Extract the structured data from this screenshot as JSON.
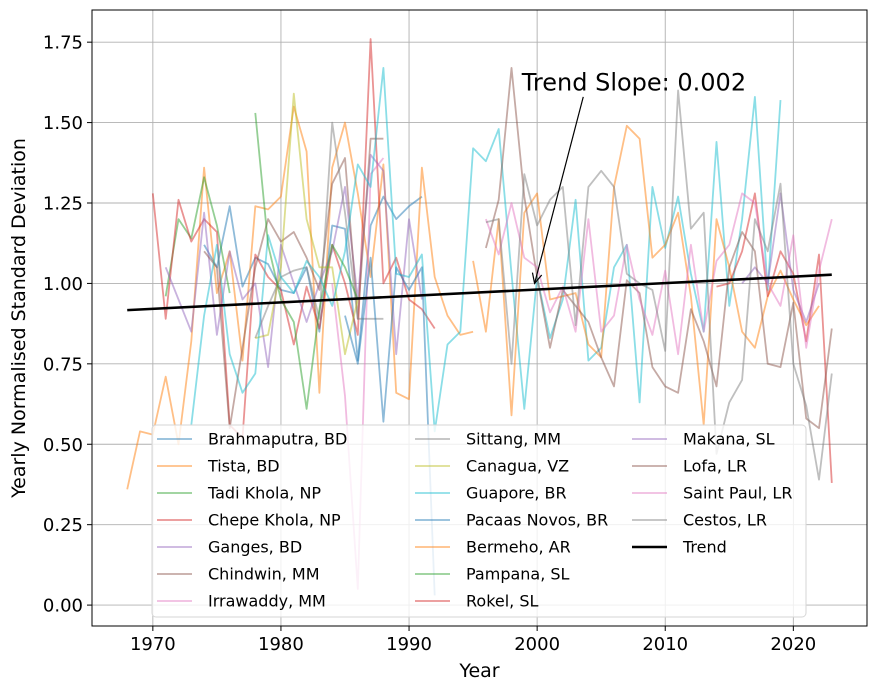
{
  "chart_data": {
    "type": "line",
    "xlabel": "Year",
    "ylabel": "Yearly Normalised Standard Deviation",
    "xlim": [
      1965.25,
      2025.75
    ],
    "ylim": [
      -0.065,
      1.85
    ],
    "grid": true,
    "legend_placement": "lower center",
    "x_ticks": [
      1970,
      1980,
      1990,
      2000,
      2010,
      2020
    ],
    "y_ticks": [
      0.0,
      0.25,
      0.5,
      0.75,
      1.0,
      1.25,
      1.5,
      1.75
    ],
    "x_tick_labels": [
      "1970",
      "1980",
      "1990",
      "2000",
      "2010",
      "2020"
    ],
    "y_tick_labels": [
      "0.00",
      "0.25",
      "0.50",
      "0.75",
      "1.00",
      "1.25",
      "1.50",
      "1.75"
    ],
    "annotation": {
      "text": "Trend Slope: 0.002",
      "text_x": 1998.8,
      "text_y": 1.6,
      "arrow_from_x": 2003.6,
      "arrow_from_y": 1.58,
      "arrow_to_x": 1999.8,
      "arrow_to_y": 1.0
    },
    "trend": {
      "name": "Trend",
      "color": "#000000",
      "x": [
        1968,
        2023
      ],
      "y": [
        0.917,
        1.027
      ]
    },
    "series": [
      {
        "name": "Brahmaputra, BD",
        "color": "#1f77b4",
        "x": [
          1974,
          1975,
          1976,
          1977,
          1978,
          1979,
          1980,
          1981,
          1982,
          1983,
          1984,
          1985,
          1986,
          1987,
          1988,
          1989,
          1990,
          1991
        ],
        "y": [
          1.12,
          1.05,
          1.24,
          0.99,
          1.08,
          1.06,
          0.98,
          0.97,
          1.05,
          0.85,
          1.18,
          1.17,
          0.76,
          1.18,
          1.27,
          1.2,
          1.24,
          1.27
        ]
      },
      {
        "name": "Tista, BD",
        "color": "#ff7f0e",
        "x": [
          1968,
          1969,
          1970,
          1971,
          1972,
          1973,
          1974,
          1975,
          1976,
          1977,
          1978,
          1979,
          1980,
          1981,
          1982,
          1983,
          1984,
          1985,
          1986,
          1987,
          1988,
          1989,
          1990,
          1991,
          1992,
          1993,
          1994,
          1995
        ],
        "y": [
          0.36,
          0.54,
          0.53,
          0.71,
          0.5,
          0.82,
          1.36,
          0.97,
          1.1,
          0.76,
          1.24,
          1.23,
          1.27,
          1.55,
          1.41,
          0.66,
          1.36,
          1.5,
          1.28,
          1.02,
          1.37,
          0.66,
          0.64,
          1.36,
          1.02,
          0.9,
          0.84,
          0.85
        ]
      },
      {
        "name": "Tadi Khola, NP",
        "color": "#2ca02c",
        "x": [
          1971,
          1972,
          1973,
          1974,
          1975,
          1976
        ],
        "y": [
          0.96,
          1.2,
          1.14,
          1.33,
          1.18,
          0.97
        ]
      },
      {
        "name": "Chepe Khola, NP",
        "color": "#d62728",
        "x": [
          1970,
          1971,
          1972,
          1973,
          1974,
          1975,
          1976,
          1977,
          1978,
          1979,
          1980,
          1981,
          1982,
          1983,
          1984,
          1985,
          1986,
          1987,
          1988,
          1989,
          1990,
          1991,
          1992
        ],
        "y": [
          1.28,
          0.89,
          1.26,
          1.13,
          1.2,
          1.16,
          0.56,
          0.52,
          1.09,
          1.02,
          0.98,
          0.81,
          0.99,
          0.86,
          1.12,
          1.0,
          0.84,
          1.76,
          1.0,
          1.08,
          0.95,
          0.92,
          0.86
        ]
      },
      {
        "name": "Ganges, BD",
        "color": "#9467bd",
        "x": [
          1971,
          1972,
          1973,
          1974,
          1975,
          1976,
          1977,
          1978,
          1979,
          1980,
          1981,
          1982,
          1983,
          1984,
          1985,
          1986,
          1987,
          1988,
          1989,
          1990,
          1991
        ],
        "y": [
          1.05,
          0.95,
          0.85,
          1.22,
          0.84,
          1.1,
          0.95,
          1.0,
          0.74,
          1.12,
          1.0,
          0.88,
          1.0,
          1.1,
          1.3,
          0.95,
          1.4,
          1.35,
          0.78,
          1.2,
          0.95
        ]
      },
      {
        "name": "Chindwin, MM",
        "color": "#8c564b",
        "x": [
          1974,
          1975,
          1976,
          1977,
          1978,
          1979,
          1980,
          1981,
          1982,
          1983,
          1984,
          1985,
          1986,
          1987,
          1988
        ],
        "y": [
          1.1,
          1.05,
          0.55,
          0.8,
          1.05,
          1.2,
          1.13,
          1.16,
          1.08,
          0.98,
          1.31,
          1.39,
          0.89,
          1.45,
          1.45
        ]
      },
      {
        "name": "Irrawaddy, MM",
        "color": "#e377c2",
        "x": [
          1984,
          1985,
          1986,
          1987,
          1988
        ],
        "y": [
          1.0,
          0.65,
          0.05,
          1.34,
          1.39
        ]
      },
      {
        "name": "Sittang, MM",
        "color": "#7f7f7f",
        "x": [
          1978,
          1979,
          1980,
          1981,
          1982,
          1983,
          1984,
          1985,
          1986,
          1987,
          1988
        ],
        "y": [
          0.83,
          0.93,
          1.02,
          1.04,
          1.05,
          0.89,
          1.5,
          1.22,
          0.89,
          0.89,
          0.89
        ]
      },
      {
        "name": "Canagua, VZ",
        "color": "#bcbd22",
        "x": [
          1978,
          1979,
          1980,
          1981,
          1982,
          1983,
          1984,
          1985,
          1986
        ],
        "y": [
          0.83,
          0.84,
          1.05,
          1.59,
          1.2,
          1.05,
          1.05,
          0.78,
          0.95
        ]
      },
      {
        "name": "Guapore, BR",
        "color": "#17becf",
        "x": [
          1973,
          1974,
          1975,
          1976,
          1977,
          1978,
          1979,
          1980,
          1981,
          1982,
          1983,
          1984,
          1985,
          1986,
          1987,
          1988,
          1989,
          1990,
          1991,
          1992,
          1993,
          1994,
          1995,
          1996,
          1997,
          1998,
          1999,
          2000,
          2001,
          2002,
          2003,
          2004,
          2005,
          2006,
          2007,
          2008,
          2009,
          2010,
          2011,
          2012,
          2013,
          2014,
          2015,
          2016,
          2017,
          2018,
          2019
        ],
        "y": [
          0.56,
          0.9,
          1.12,
          0.78,
          0.66,
          0.72,
          1.15,
          1.02,
          0.97,
          1.07,
          1.02,
          0.93,
          1.1,
          1.37,
          1.3,
          1.67,
          1.03,
          1.02,
          1.09,
          0.54,
          0.81,
          0.85,
          1.42,
          1.38,
          1.48,
          1.03,
          0.61,
          1.02,
          0.83,
          0.95,
          1.26,
          0.76,
          0.8,
          1.05,
          1.12,
          0.63,
          1.3,
          1.11,
          1.27,
          1.03,
          0.85,
          1.44,
          0.93,
          1.2,
          1.58,
          0.98,
          1.57
        ]
      },
      {
        "name": "Pacaas Novos, BR",
        "color": "#1f77b4",
        "x": [
          1985,
          1986,
          1987,
          1988,
          1989,
          1990,
          1991,
          1992
        ],
        "y": [
          0.9,
          0.75,
          1.08,
          0.57,
          1.05,
          0.98,
          1.05,
          0.03
        ]
      },
      {
        "name": "Bermeho, AR",
        "color": "#ff7f0e",
        "x": [
          1995,
          1996,
          1997,
          1998,
          1999,
          2000,
          2001,
          2002,
          2003,
          2004,
          2005,
          2006,
          2007,
          2008,
          2009,
          2010,
          2011,
          2012,
          2013,
          2014,
          2015,
          2016,
          2017,
          2018,
          2019,
          2020,
          2021,
          2022
        ],
        "y": [
          1.07,
          0.85,
          1.2,
          0.59,
          1.22,
          1.28,
          0.95,
          0.96,
          0.97,
          0.81,
          0.77,
          1.3,
          1.49,
          1.45,
          1.08,
          1.12,
          1.22,
          0.96,
          0.56,
          1.2,
          1.05,
          0.85,
          0.8,
          0.96,
          1.04,
          0.95,
          0.87,
          0.93
        ]
      },
      {
        "name": "Pampana, SL",
        "color": "#2ca02c",
        "x": [
          1978,
          1979,
          1980,
          1981,
          1982,
          1983,
          1984,
          1985,
          1986
        ],
        "y": [
          1.53,
          1.12,
          0.95,
          0.88,
          0.61,
          0.92,
          1.12,
          1.05,
          0.95
        ]
      },
      {
        "name": "Rokel, SL",
        "color": "#d62728",
        "x": [
          2014,
          2015,
          2016,
          2017,
          2018,
          2019,
          2020,
          2021,
          2022,
          2023
        ],
        "y": [
          0.99,
          1.0,
          1.1,
          1.28,
          0.96,
          1.1,
          1.03,
          0.82,
          1.09,
          0.38
        ]
      },
      {
        "name": "Makana, SL",
        "color": "#9467bd",
        "x": [
          2016,
          2017,
          2018,
          2019,
          2020,
          2021,
          2022
        ],
        "y": [
          1.0,
          1.05,
          1.0,
          1.28,
          0.98,
          0.88,
          1.0
        ]
      },
      {
        "name": "Lofa, LR",
        "color": "#8c564b",
        "x": [
          1996,
          1997,
          1998,
          1999,
          2000,
          2001,
          2002,
          2003,
          2004,
          2005,
          2006,
          2007,
          2008,
          2009,
          2010,
          2011,
          2012,
          2013,
          2014,
          2015,
          2016,
          2017,
          2018,
          2019,
          2020,
          2021,
          2022,
          2023
        ],
        "y": [
          1.11,
          1.26,
          1.67,
          1.27,
          1.02,
          0.8,
          0.98,
          0.93,
          0.88,
          0.77,
          0.68,
          1.01,
          0.97,
          0.74,
          0.68,
          0.66,
          0.92,
          0.82,
          0.68,
          1.05,
          1.16,
          1.1,
          0.75,
          0.74,
          0.94,
          0.58,
          0.55,
          0.86
        ]
      },
      {
        "name": "Saint Paul, LR",
        "color": "#e377c2",
        "x": [
          1996,
          1997,
          1998,
          1999,
          2000,
          2001,
          2002,
          2003,
          2004,
          2005,
          2006,
          2007,
          2008,
          2009,
          2010,
          2011,
          2012,
          2013,
          2014,
          2015,
          2016,
          2017,
          2018,
          2019,
          2020,
          2021,
          2022,
          2023
        ],
        "y": [
          1.2,
          1.09,
          1.25,
          1.08,
          1.05,
          0.91,
          0.99,
          0.85,
          1.2,
          0.85,
          0.9,
          1.12,
          0.95,
          0.84,
          1.04,
          0.78,
          1.12,
          0.85,
          1.07,
          1.12,
          1.28,
          1.25,
          1.0,
          0.93,
          1.15,
          0.8,
          1.04,
          1.2
        ]
      },
      {
        "name": "Cestos, LR",
        "color": "#7f7f7f",
        "x": [
          1996,
          1997,
          1998,
          1999,
          2000,
          2001,
          2002,
          2003,
          2004,
          2005,
          2006,
          2007,
          2008,
          2009,
          2010,
          2011,
          2012,
          2013,
          2014,
          2015,
          2016,
          2017,
          2018,
          2019,
          2020,
          2021,
          2022,
          2023
        ],
        "y": [
          1.19,
          1.2,
          0.75,
          1.34,
          1.18,
          1.26,
          1.3,
          0.87,
          1.3,
          1.35,
          1.3,
          1.03,
          1.0,
          0.98,
          0.79,
          1.6,
          1.17,
          1.22,
          0.47,
          0.63,
          0.7,
          1.2,
          1.1,
          1.31,
          0.75,
          0.62,
          0.39,
          0.72
        ]
      }
    ]
  }
}
